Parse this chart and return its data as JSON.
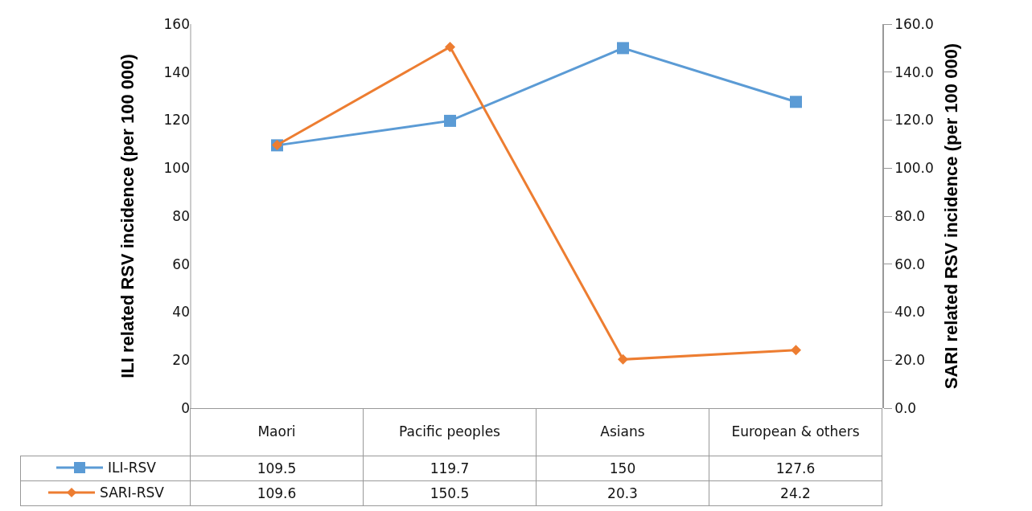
{
  "chart_data": {
    "type": "line",
    "ylabel": "ILI related RSV incidence (per 100 000)",
    "y2label": "SARI related RSV incidence (per 100 000)",
    "categories": [
      "Maori",
      "Pacific peoples",
      "Asians",
      "European & others"
    ],
    "series": [
      {
        "name": "ILI-RSV",
        "color": "#5b9bd5",
        "marker": "square",
        "values": [
          109.5,
          119.7,
          150,
          127.6
        ]
      },
      {
        "name": "SARI-RSV",
        "color": "#ed7d31",
        "marker": "diamond",
        "axis": "y2",
        "values": [
          109.6,
          150.5,
          20.3,
          24.2
        ]
      }
    ],
    "ylim": [
      0,
      160
    ],
    "yticks": [
      0,
      20,
      40,
      60,
      80,
      100,
      120,
      140,
      160
    ],
    "y2lim": [
      0,
      160
    ],
    "y2ticks": [
      {
        "value": 0,
        "label": "0.0"
      },
      {
        "value": 20,
        "label": "20.0"
      },
      {
        "value": 40,
        "label": "40.0"
      },
      {
        "value": 60,
        "label": "60.0"
      },
      {
        "value": 80,
        "label": "80.0"
      },
      {
        "value": 100,
        "label": "100.0"
      },
      {
        "value": 120,
        "label": "120.0"
      },
      {
        "value": 140,
        "label": "140.0"
      },
      {
        "value": 160,
        "label": "160.0"
      }
    ],
    "grid": false,
    "legend": "bottom",
    "data_labels": true
  }
}
